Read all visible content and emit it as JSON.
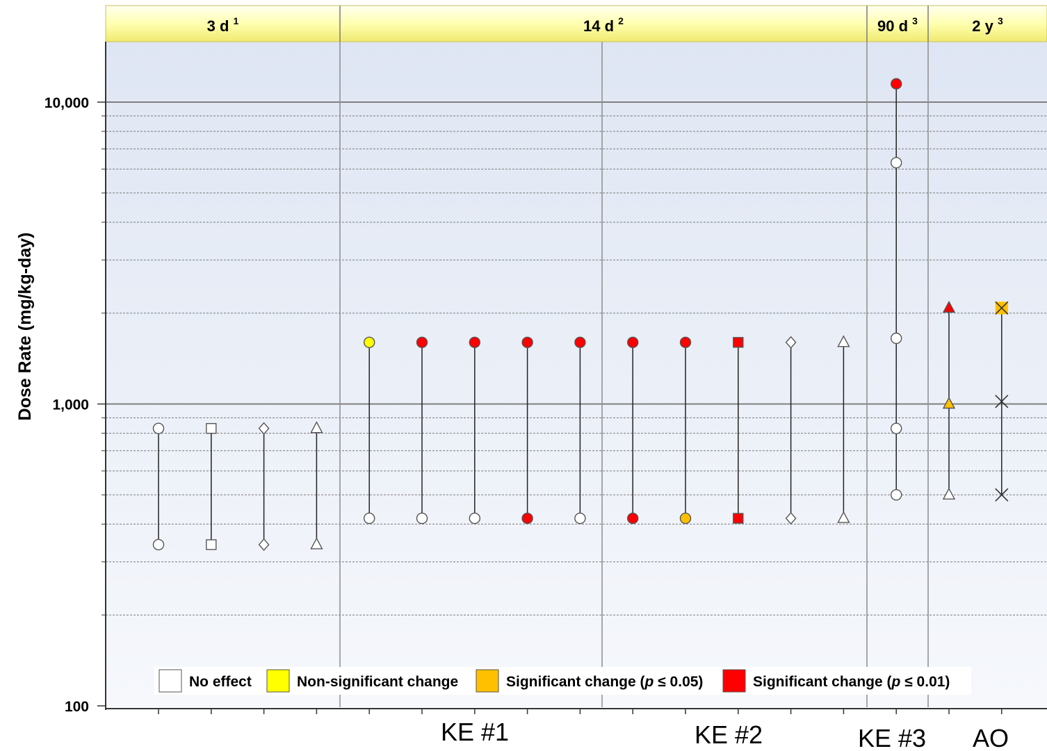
{
  "chart_data": {
    "type": "scatter",
    "ylabel": "Dose Rate (mg/kg-day)",
    "yscale": "log",
    "ylim": [
      100,
      17000
    ],
    "yticks": [
      {
        "value": 100,
        "label": "100"
      },
      {
        "value": 1000,
        "label": "1,000"
      },
      {
        "value": 10000,
        "label": "10,000"
      }
    ],
    "grid": true,
    "duration_bands": [
      {
        "label": "3 d",
        "sup": "1"
      },
      {
        "label": "14 d",
        "sup": "2"
      },
      {
        "label": "90 d",
        "sup": "3"
      },
      {
        "label": "2 y",
        "sup": "3"
      }
    ],
    "x_group_labels": [
      "KE #1",
      "KE #2",
      "KE #3",
      "AO"
    ],
    "colors": {
      "No effect": "#ffffff",
      "Non-significant change": "#ffff00",
      "Significant change (p ≤ 0.05)": "#ffc000",
      "Significant change (p ≤ 0.01)": "#ff0000"
    },
    "legend": {
      "placement": "bottom",
      "items": [
        {
          "label": "No effect",
          "color": "#ffffff"
        },
        {
          "label": "Non-significant change",
          "color": "#ffff00"
        },
        {
          "label": "Significant change (",
          "italic": "p",
          "rest": " ≤ 0.05)",
          "color": "#ffc000"
        },
        {
          "label": "Significant change (",
          "italic": "p",
          "rest": " ≤ 0.01)",
          "color": "#ff0000"
        }
      ]
    },
    "series": [
      {
        "x": 1,
        "band": "3 d",
        "shape": "circle",
        "points": [
          {
            "y": 342,
            "effect": "No effect"
          },
          {
            "y": 830,
            "effect": "No effect"
          }
        ]
      },
      {
        "x": 2,
        "band": "3 d",
        "shape": "square",
        "points": [
          {
            "y": 342,
            "effect": "No effect"
          },
          {
            "y": 830,
            "effect": "No effect"
          }
        ]
      },
      {
        "x": 3,
        "band": "3 d",
        "shape": "diamond",
        "points": [
          {
            "y": 342,
            "effect": "No effect"
          },
          {
            "y": 830,
            "effect": "No effect"
          }
        ]
      },
      {
        "x": 4,
        "band": "3 d",
        "shape": "triangle",
        "points": [
          {
            "y": 342,
            "effect": "No effect"
          },
          {
            "y": 830,
            "effect": "No effect"
          }
        ]
      },
      {
        "x": 5,
        "band": "14 d",
        "shape": "circle",
        "points": [
          {
            "y": 418,
            "effect": "No effect"
          },
          {
            "y": 1600,
            "effect": "Non-significant change"
          }
        ]
      },
      {
        "x": 6,
        "band": "14 d",
        "shape": "circle",
        "points": [
          {
            "y": 418,
            "effect": "No effect"
          },
          {
            "y": 1600,
            "effect": "Significant change (p ≤ 0.01)"
          }
        ]
      },
      {
        "x": 7,
        "band": "14 d",
        "shape": "circle",
        "points": [
          {
            "y": 418,
            "effect": "No effect"
          },
          {
            "y": 1600,
            "effect": "Significant change (p ≤ 0.01)"
          }
        ]
      },
      {
        "x": 8,
        "band": "14 d",
        "shape": "circle",
        "points": [
          {
            "y": 418,
            "effect": "Significant change (p ≤ 0.01)"
          },
          {
            "y": 1600,
            "effect": "Significant change (p ≤ 0.01)"
          }
        ]
      },
      {
        "x": 9,
        "band": "14 d",
        "shape": "circle",
        "points": [
          {
            "y": 418,
            "effect": "No effect"
          },
          {
            "y": 1600,
            "effect": "Significant change (p ≤ 0.01)"
          }
        ]
      },
      {
        "x": 10,
        "band": "14 d",
        "shape": "circle",
        "points": [
          {
            "y": 418,
            "effect": "Significant change (p ≤ 0.01)"
          },
          {
            "y": 1600,
            "effect": "Significant change (p ≤ 0.01)"
          }
        ]
      },
      {
        "x": 11,
        "band": "14 d",
        "shape": "circle",
        "points": [
          {
            "y": 418,
            "effect": "Significant change (p ≤ 0.05)"
          },
          {
            "y": 1600,
            "effect": "Significant change (p ≤ 0.01)"
          }
        ]
      },
      {
        "x": 12,
        "band": "14 d",
        "shape": "square",
        "points": [
          {
            "y": 418,
            "effect": "Significant change (p ≤ 0.01)"
          },
          {
            "y": 1600,
            "effect": "Significant change (p ≤ 0.01)"
          }
        ]
      },
      {
        "x": 13,
        "band": "14 d",
        "shape": "diamond",
        "points": [
          {
            "y": 418,
            "effect": "No effect"
          },
          {
            "y": 1600,
            "effect": "No effect"
          }
        ]
      },
      {
        "x": 14,
        "band": "14 d",
        "shape": "triangle",
        "points": [
          {
            "y": 418,
            "effect": "No effect"
          },
          {
            "y": 1600,
            "effect": "No effect"
          }
        ]
      },
      {
        "x": 15,
        "band": "90 d",
        "shape": "circle",
        "points": [
          {
            "y": 500,
            "effect": "No effect"
          },
          {
            "y": 830,
            "effect": "No effect"
          },
          {
            "y": 1650,
            "effect": "No effect"
          },
          {
            "y": 6300,
            "effect": "No effect"
          },
          {
            "y": 11500,
            "effect": "Significant change (p ≤ 0.01)"
          }
        ]
      },
      {
        "x": 16,
        "band": "2 y",
        "shape": "triangle",
        "points": [
          {
            "y": 500,
            "effect": "No effect"
          },
          {
            "y": 1000,
            "effect": "Significant change (p ≤ 0.05)"
          },
          {
            "y": 2080,
            "effect": "Significant change (p ≤ 0.01)"
          }
        ]
      },
      {
        "x": 17,
        "band": "2 y",
        "shape": "x",
        "points": [
          {
            "y": 500,
            "effect": "No effect"
          },
          {
            "y": 1020,
            "effect": "No effect"
          },
          {
            "y": 2080,
            "effect": "Significant change (p ≤ 0.05)"
          }
        ]
      }
    ]
  }
}
